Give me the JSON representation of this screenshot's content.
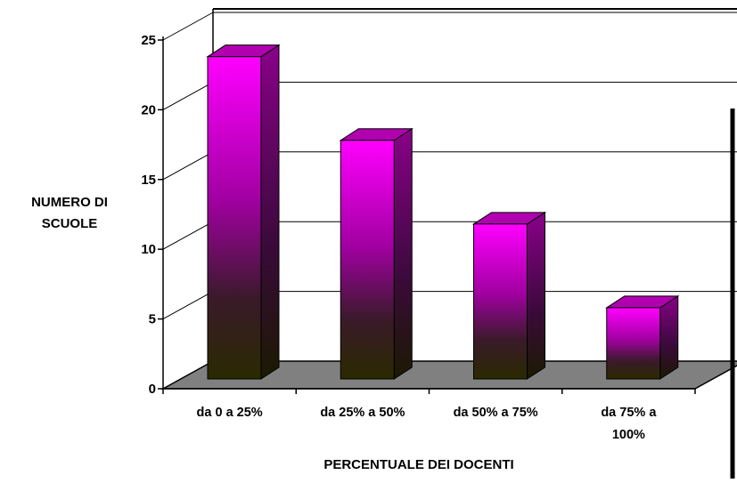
{
  "chart_data": {
    "type": "bar",
    "categories": [
      "da 0 a 25%",
      "da 25% a 50%",
      "da 50% a 75%",
      "da 75% a 100%"
    ],
    "category_lines": [
      [
        "da 0 a 25%"
      ],
      [
        "da 25% a 50%"
      ],
      [
        "da 50% a 75%"
      ],
      [
        "da 75% a",
        "100%"
      ]
    ],
    "values": [
      24,
      18,
      12,
      6
    ],
    "title": "",
    "xlabel": "PERCENTUALE DEI DOCENTI",
    "ylabel_lines": [
      "NUMERO DI",
      "SCUOLE"
    ],
    "ylim": [
      0,
      25
    ],
    "yticks": [
      0,
      5,
      10,
      15,
      20,
      25
    ],
    "grid": true,
    "legend": "none",
    "style": "3d",
    "colors": {
      "bar_top": "#ff00ff",
      "bar_bottom": "#2a2a00",
      "bar_side": "#7a0a7a",
      "bar_cap": "#b000b0",
      "floor": "#808080"
    }
  }
}
